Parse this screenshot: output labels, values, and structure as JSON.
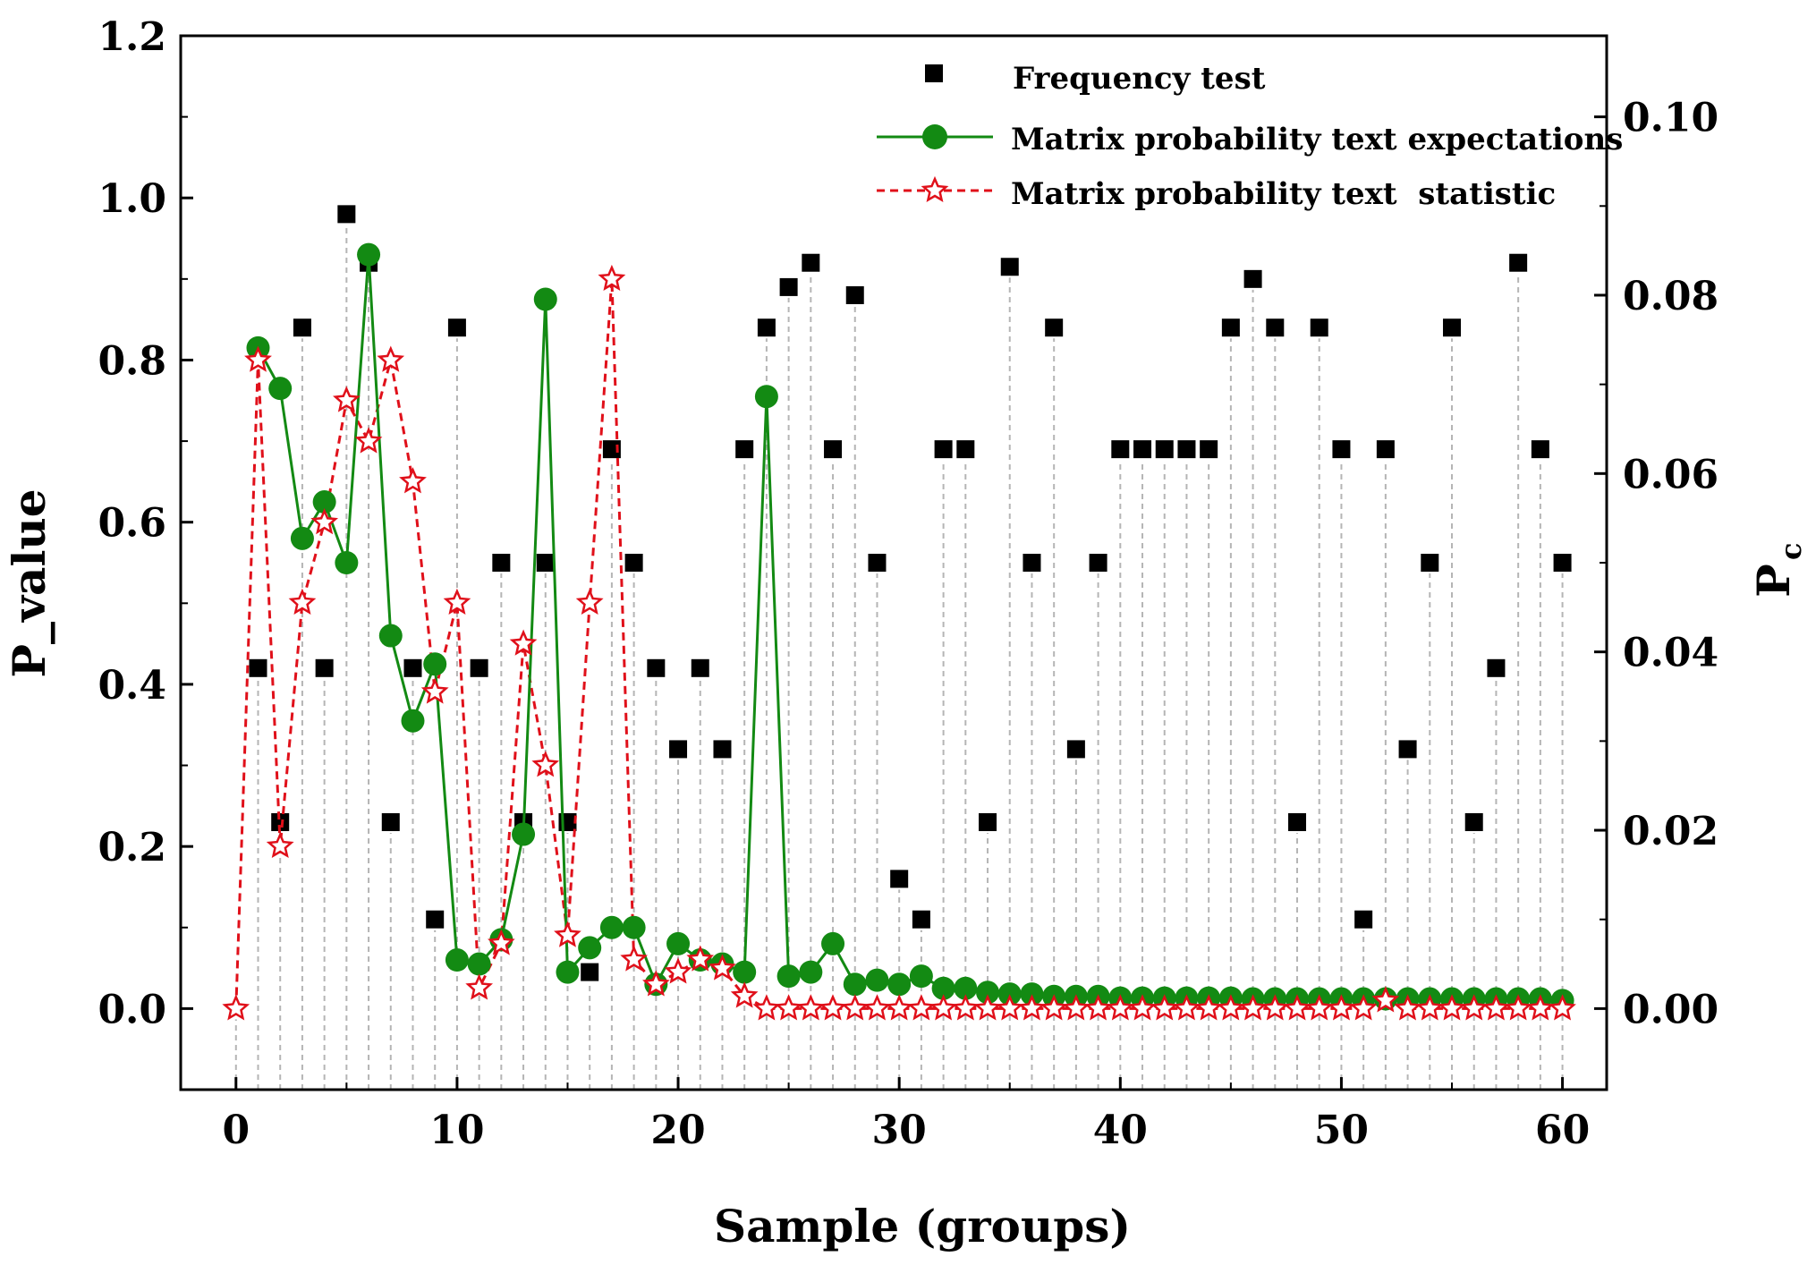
{
  "chart_data": {
    "type": "scatter",
    "xlabel": "Sample (groups)",
    "ylabel_left": "P_value",
    "ylabel_right_main": "P",
    "ylabel_right_sub": "c",
    "x_range": [
      -2.5,
      62
    ],
    "y_left_range": [
      -0.1,
      1.2
    ],
    "y_right_range": [
      -0.00909,
      0.10909
    ],
    "x_ticks": [
      0,
      10,
      20,
      30,
      40,
      50,
      60
    ],
    "x_tick_labels": [
      "0",
      "10",
      "20",
      "30",
      "40",
      "50",
      "60"
    ],
    "y_left_ticks": [
      0.0,
      0.2,
      0.4,
      0.6,
      0.8,
      1.0,
      1.2
    ],
    "y_left_tick_labels": [
      "0.0",
      "0.2",
      "0.4",
      "0.6",
      "0.8",
      "1.0",
      "1.2"
    ],
    "y_right_ticks": [
      0.0,
      0.02,
      0.04,
      0.06,
      0.08,
      0.1
    ],
    "y_right_tick_labels": [
      "0.00",
      "0.02",
      "0.04",
      "0.06",
      "0.08",
      "0.10"
    ],
    "legend_position": "top-right",
    "series": [
      {
        "name": "Frequency test",
        "style": "square",
        "color": "#000000",
        "axis": "left",
        "x": [
          1,
          2,
          3,
          4,
          5,
          6,
          7,
          8,
          9,
          10,
          11,
          12,
          13,
          14,
          15,
          16,
          17,
          18,
          19,
          20,
          21,
          22,
          23,
          24,
          25,
          26,
          27,
          28,
          29,
          30,
          31,
          32,
          33,
          34,
          35,
          36,
          37,
          38,
          39,
          40,
          41,
          42,
          43,
          44,
          45,
          46,
          47,
          48,
          49,
          50,
          51,
          52,
          53,
          54,
          55,
          56,
          57,
          58,
          59,
          60
        ],
        "y": [
          0.42,
          0.23,
          0.84,
          0.42,
          0.98,
          0.92,
          0.23,
          0.42,
          0.11,
          0.84,
          0.42,
          0.55,
          0.23,
          0.55,
          0.23,
          0.045,
          0.69,
          0.55,
          0.42,
          0.32,
          0.42,
          0.32,
          0.69,
          0.84,
          0.89,
          0.92,
          0.69,
          0.88,
          0.55,
          0.16,
          0.11,
          0.69,
          0.69,
          0.23,
          0.915,
          0.55,
          0.84,
          0.32,
          0.55,
          0.69,
          0.69,
          0.69,
          0.69,
          0.69,
          0.84,
          0.9,
          0.84,
          0.23,
          0.84,
          0.69,
          0.11,
          0.69,
          0.32,
          0.55,
          0.84,
          0.23,
          0.42,
          0.92,
          0.69,
          0.55
        ]
      },
      {
        "name": "Matrix probability text expectations",
        "style": "line-circle",
        "color": "#138a13",
        "axis": "left",
        "x": [
          1,
          2,
          3,
          4,
          5,
          6,
          7,
          8,
          9,
          10,
          11,
          12,
          13,
          14,
          15,
          16,
          17,
          18,
          19,
          20,
          21,
          22,
          23,
          24,
          25,
          26,
          27,
          28,
          29,
          30,
          31,
          32,
          33,
          34,
          35,
          36,
          37,
          38,
          39,
          40,
          41,
          42,
          43,
          44,
          45,
          46,
          47,
          48,
          49,
          50,
          51,
          52,
          53,
          54,
          55,
          56,
          57,
          58,
          59,
          60
        ],
        "y": [
          0.815,
          0.765,
          0.58,
          0.625,
          0.55,
          0.93,
          0.46,
          0.355,
          0.425,
          0.06,
          0.055,
          0.085,
          0.215,
          0.875,
          0.045,
          0.075,
          0.1,
          0.1,
          0.03,
          0.08,
          0.06,
          0.055,
          0.045,
          0.755,
          0.04,
          0.045,
          0.08,
          0.03,
          0.035,
          0.03,
          0.04,
          0.025,
          0.025,
          0.02,
          0.018,
          0.018,
          0.015,
          0.015,
          0.015,
          0.013,
          0.013,
          0.013,
          0.013,
          0.013,
          0.013,
          0.012,
          0.012,
          0.012,
          0.012,
          0.012,
          0.012,
          0.012,
          0.012,
          0.012,
          0.012,
          0.012,
          0.012,
          0.012,
          0.012,
          0.01
        ]
      },
      {
        "name": "Matrix probability text  statistic",
        "style": "dash-star",
        "color": "#e0101a",
        "axis": "right",
        "x": [
          0,
          1,
          2,
          3,
          4,
          5,
          6,
          7,
          8,
          9,
          10,
          11,
          12,
          13,
          14,
          15,
          16,
          17,
          18,
          19,
          20,
          21,
          22,
          23,
          24,
          25,
          26,
          27,
          28,
          29,
          30,
          31,
          32,
          33,
          34,
          35,
          36,
          37,
          38,
          39,
          40,
          41,
          42,
          43,
          44,
          45,
          46,
          47,
          48,
          49,
          50,
          51,
          52,
          53,
          54,
          55,
          56,
          57,
          58,
          59,
          60
        ],
        "y": [
          0.0,
          0.0727,
          0.0182,
          0.0455,
          0.0545,
          0.0682,
          0.0636,
          0.0727,
          0.0591,
          0.0355,
          0.0455,
          0.0023,
          0.0073,
          0.0409,
          0.0273,
          0.0082,
          0.0455,
          0.0818,
          0.0055,
          0.0027,
          0.0041,
          0.0055,
          0.0045,
          0.0014,
          0.0,
          0.0,
          0.0,
          0.0,
          0.0,
          0.0,
          0.0,
          0.0,
          0.0,
          0.0,
          0.0,
          0.0,
          0.0,
          0.0,
          0.0,
          0.0,
          0.0,
          0.0,
          0.0,
          0.0,
          0.0,
          0.0,
          0.0,
          0.0,
          0.0,
          0.0,
          0.0,
          0.0,
          0.0009,
          0.0,
          0.0,
          0.0,
          0.0,
          0.0,
          0.0,
          0.0,
          0.0
        ]
      }
    ]
  }
}
